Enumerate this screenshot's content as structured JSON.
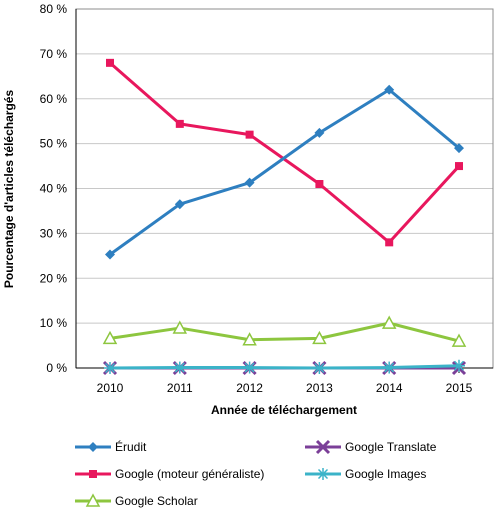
{
  "chart_data": {
    "type": "line",
    "xlabel": "Année de téléchargement",
    "ylabel": "Pourcentage d'articles téléchargés",
    "x": [
      2010,
      2011,
      2012,
      2013,
      2014,
      2015
    ],
    "x_tick_labels": [
      "2010",
      "2011",
      "2012",
      "2013",
      "2014",
      "2015"
    ],
    "ylim": [
      0,
      80
    ],
    "y_ticks": [
      0,
      10,
      20,
      30,
      40,
      50,
      60,
      70,
      80
    ],
    "y_tick_labels": [
      "0 %",
      "10 %",
      "20 %",
      "30 %",
      "40 %",
      "50 %",
      "60 %",
      "70 %",
      "80 %"
    ],
    "grid": "horizontal",
    "legend_position": "bottom",
    "series": [
      {
        "name": "Érudit",
        "color": "#2e7fc0",
        "marker": "diamond",
        "values": [
          25.3,
          36.5,
          41.3,
          52.4,
          62.0,
          49.0
        ]
      },
      {
        "name": "Google (moteur généraliste)",
        "color": "#e8175d",
        "marker": "square",
        "values": [
          68.0,
          54.4,
          52.0,
          41.0,
          28.0,
          45.0
        ]
      },
      {
        "name": "Google Scholar",
        "color": "#8dc63f",
        "marker": "triangle",
        "values": [
          6.6,
          8.9,
          6.3,
          6.6,
          10.0,
          6.0
        ]
      },
      {
        "name": "Google Translate",
        "color": "#7b3f98",
        "marker": "x",
        "values": [
          0.0,
          0.0,
          0.0,
          0.0,
          0.0,
          0.0
        ]
      },
      {
        "name": "Google Images",
        "color": "#3bb3c8",
        "marker": "star",
        "values": [
          0.0,
          0.1,
          0.1,
          0.0,
          0.1,
          0.5
        ]
      }
    ],
    "legend_order": [
      0,
      3,
      1,
      4,
      2
    ]
  }
}
